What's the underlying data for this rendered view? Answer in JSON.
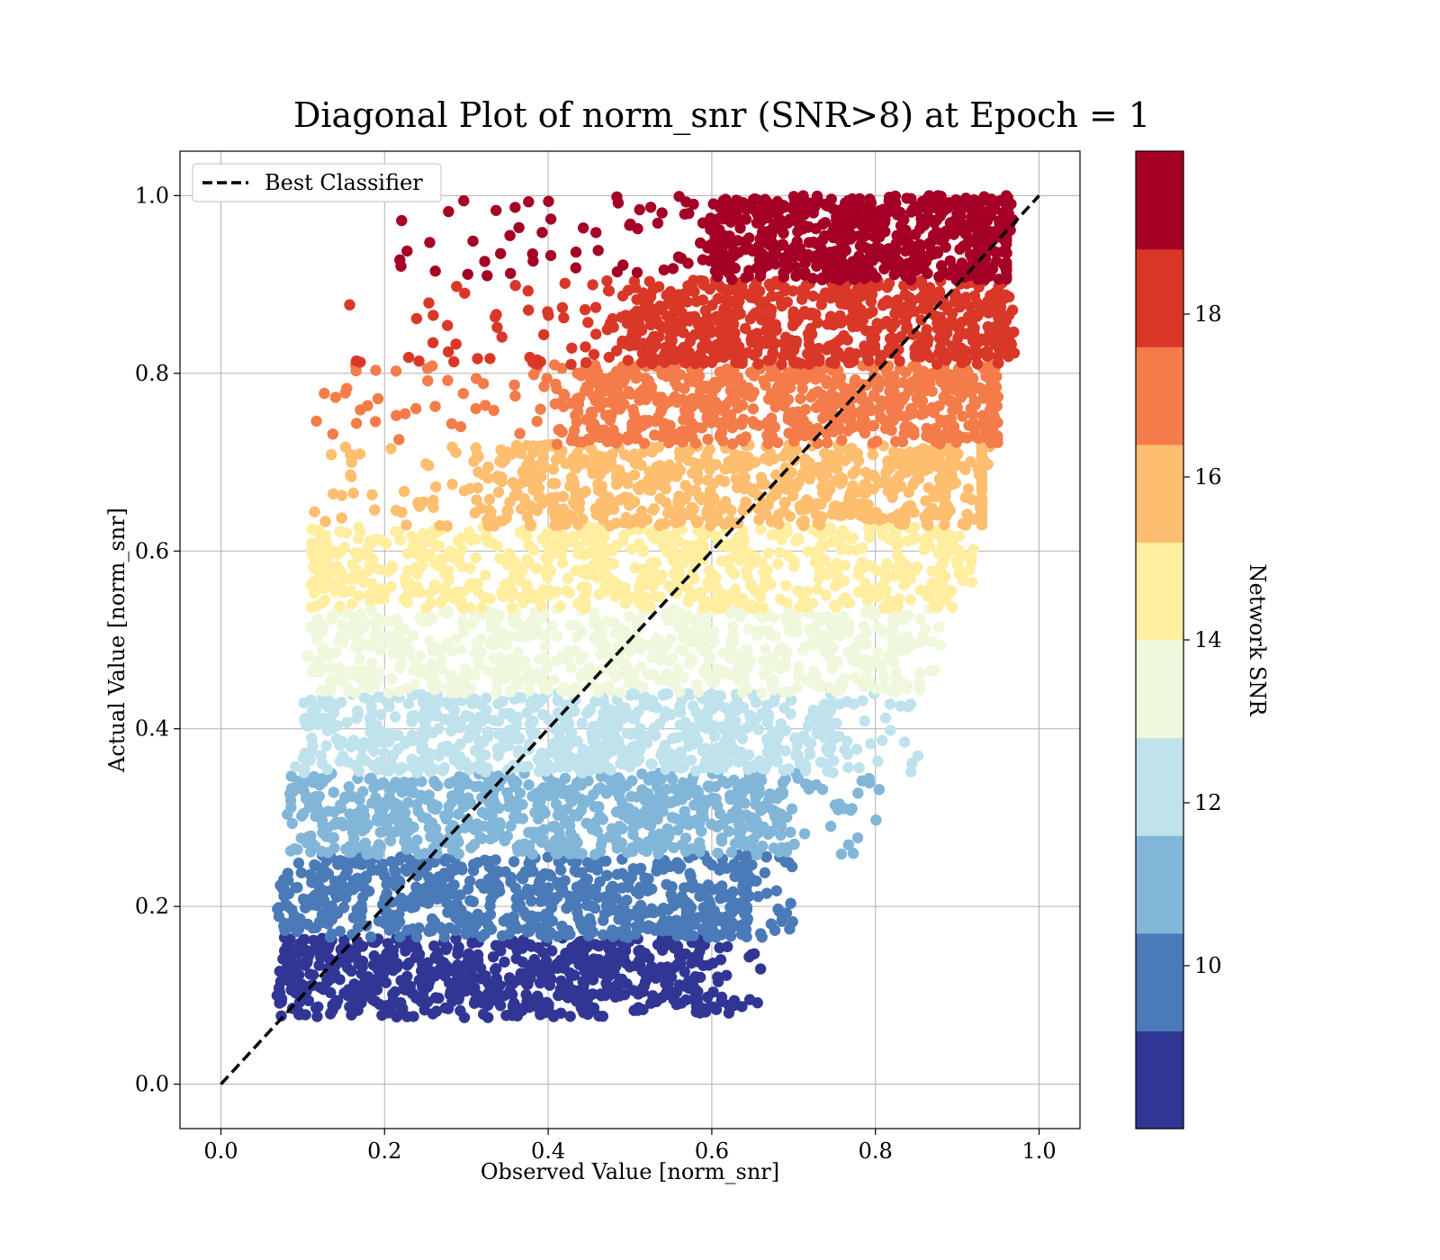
{
  "chart_data": {
    "type": "scatter",
    "title": "Diagonal Plot of norm_snr (SNR>8) at Epoch = 1",
    "xlabel": "Observed Value [norm_snr]",
    "ylabel": "Actual Value [norm_snr]",
    "xlim": [
      -0.05,
      1.05
    ],
    "ylim": [
      -0.05,
      1.05
    ],
    "xticks": [
      "0.0",
      "0.2",
      "0.4",
      "0.6",
      "0.8",
      "1.0"
    ],
    "yticks": [
      "0.0",
      "0.2",
      "0.4",
      "0.6",
      "0.8",
      "1.0"
    ],
    "grid": true,
    "legend": {
      "placement": "top-left",
      "entries": [
        "Best Classifier"
      ]
    },
    "reference_line": {
      "name": "Best Classifier",
      "x": [
        0.0,
        1.0
      ],
      "y": [
        0.0,
        1.0
      ],
      "style": "dashed",
      "color": "#000000"
    },
    "colorbar": {
      "label": "Network SNR",
      "range": [
        8,
        20
      ],
      "ticks": [
        "10",
        "12",
        "14",
        "16",
        "18"
      ],
      "colors": [
        "#313695",
        "#4a7ab7",
        "#82b6d8",
        "#bfe2ed",
        "#eff8dc",
        "#ffeea0",
        "#fdbe6f",
        "#f47c4a",
        "#d93829",
        "#a50026"
      ]
    },
    "bands": [
      {
        "snr_range": [
          8.0,
          9.2
        ],
        "color": "#313695",
        "y_range": [
          0.075,
          0.165
        ],
        "x_core": [
          0.065,
          0.58
        ],
        "scatter_x_max": 0.66
      },
      {
        "snr_range": [
          9.2,
          10.4
        ],
        "color": "#4a7ab7",
        "y_range": [
          0.165,
          0.258
        ],
        "x_core": [
          0.065,
          0.64
        ],
        "scatter_x_max": 0.7
      },
      {
        "snr_range": [
          10.4,
          11.6
        ],
        "color": "#82b6d8",
        "y_range": [
          0.258,
          0.35
        ],
        "x_core": [
          0.075,
          0.68
        ],
        "scatter_x_max": 0.81
      },
      {
        "snr_range": [
          11.6,
          12.8
        ],
        "color": "#bfe2ed",
        "y_range": [
          0.35,
          0.44
        ],
        "x_core": [
          0.09,
          0.74
        ],
        "scatter_x_max": 0.86
      },
      {
        "snr_range": [
          12.8,
          14.0
        ],
        "color": "#eff8dc",
        "y_range": [
          0.44,
          0.535
        ],
        "x_core": [
          0.1,
          0.82
        ],
        "scatter_x_max": 0.88
      },
      {
        "snr_range": [
          14.0,
          15.2
        ],
        "color": "#ffeea0",
        "y_range": [
          0.535,
          0.628
        ],
        "x_core": [
          0.13,
          0.88
        ],
        "scatter_x_max": 0.92
      },
      {
        "snr_range": [
          15.2,
          16.4
        ],
        "color": "#fdbe6f",
        "y_range": [
          0.628,
          0.72
        ],
        "x_core": [
          0.33,
          0.93
        ],
        "scatter_x_max": 0.93
      },
      {
        "snr_range": [
          16.4,
          17.6
        ],
        "color": "#f47c4a",
        "y_range": [
          0.72,
          0.81
        ],
        "x_core": [
          0.42,
          0.94
        ],
        "scatter_x_max": 0.95
      },
      {
        "snr_range": [
          17.6,
          18.8
        ],
        "color": "#d93829",
        "y_range": [
          0.81,
          0.905
        ],
        "x_core": [
          0.48,
          0.95
        ],
        "scatter_x_max": 0.97
      },
      {
        "snr_range": [
          18.8,
          20.0
        ],
        "color": "#a50026",
        "y_range": [
          0.905,
          1.0
        ],
        "x_core": [
          0.59,
          0.96
        ],
        "scatter_x_max": 0.96
      }
    ]
  }
}
